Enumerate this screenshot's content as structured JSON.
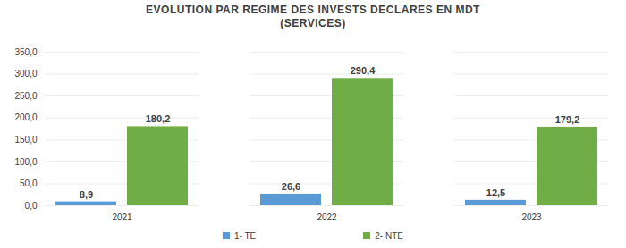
{
  "chart_data": {
    "type": "bar",
    "title": "EVOLUTION PAR REGIME DES INVESTS DECLARES EN MDT",
    "subtitle": "(SERVICES)",
    "categories": [
      "2021",
      "2022",
      "2023"
    ],
    "series": [
      {
        "name": "1- TE",
        "color": "#5B9BD5",
        "values": [
          8.9,
          26.6,
          12.5
        ],
        "value_labels": [
          "8,9",
          "26,6",
          "12,5"
        ]
      },
      {
        "name": "2- NTE",
        "color": "#70AD47",
        "values": [
          180.2,
          290.4,
          179.2
        ],
        "value_labels": [
          "180,2",
          "290,4",
          "179,2"
        ]
      }
    ],
    "ylim": [
      0,
      350
    ],
    "yticks": [
      {
        "value": 0,
        "label": "0,0"
      },
      {
        "value": 50,
        "label": "50,0"
      },
      {
        "value": 100,
        "label": "100,0"
      },
      {
        "value": 150,
        "label": "150,0"
      },
      {
        "value": 200,
        "label": "200,0"
      },
      {
        "value": 250,
        "label": "250,0"
      },
      {
        "value": 300,
        "label": "300,0"
      },
      {
        "value": 350,
        "label": "350,0"
      }
    ],
    "grid": true,
    "data_labels": true,
    "legend": "bottom"
  }
}
